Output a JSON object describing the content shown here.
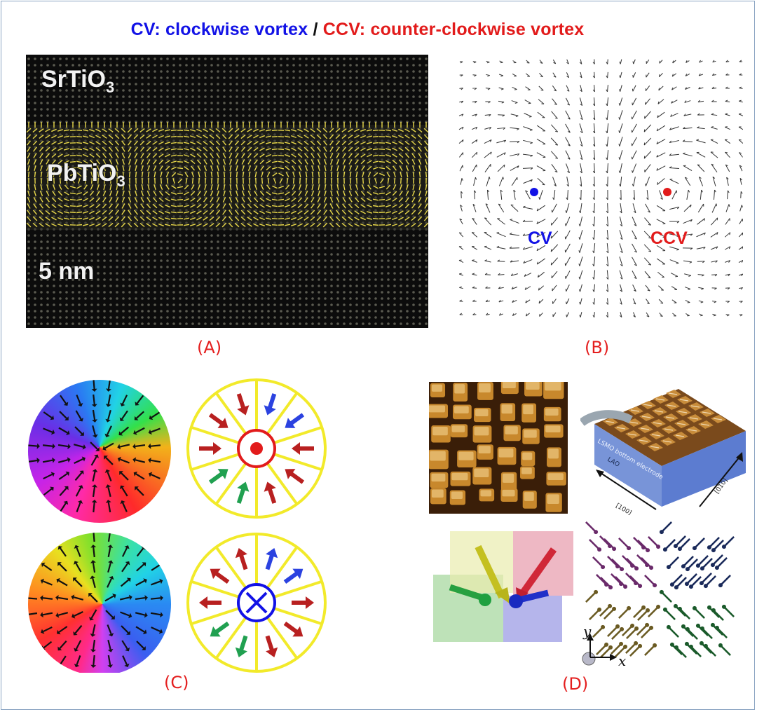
{
  "title": {
    "cv": "CV: clockwise vortex",
    "separator": "/",
    "ccv": "CCV: counter-clockwise vortex"
  },
  "panel_a": {
    "layer_top": "SrTiO",
    "layer_top_sub": "3",
    "layer_mid": "PbTiO",
    "layer_mid_sub": "3",
    "scale": "5 nm"
  },
  "panel_b": {
    "cv_label": "CV",
    "ccv_label": "CCV"
  },
  "panel_d": {
    "electrode": "LSMO bottom electrode",
    "substrate": "LAO",
    "dir_x": "[100]",
    "dir_y": "[010]",
    "axis_x": "x",
    "axis_y": "y"
  },
  "labels": {
    "a": "(A)",
    "b": "(B)",
    "c": "(C)",
    "d": "(D)"
  },
  "colors": {
    "cv": "#1212e6",
    "ccv": "#e21b1b",
    "label": "#e41e1e",
    "arrows_yellow": "#e8d84a",
    "wheel_yellow": "#f2ea2a"
  }
}
